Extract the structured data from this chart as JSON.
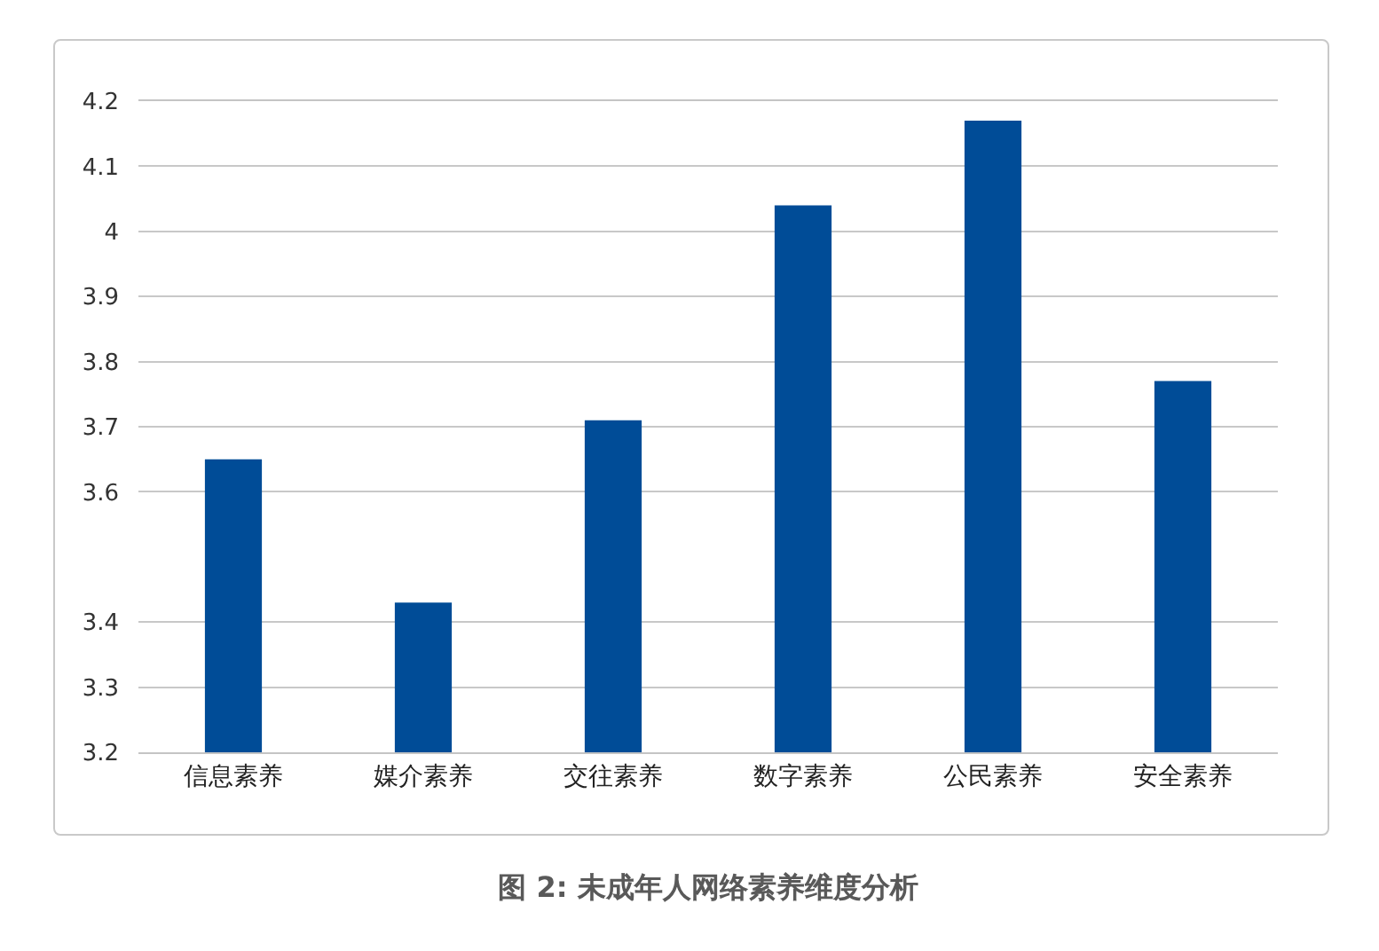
{
  "chart_data": {
    "type": "bar",
    "title": "图 2: 未成年人网络素养维度分析",
    "categories": [
      "信息素养",
      "媒介素养",
      "交往素养",
      "数字素养",
      "公民素养",
      "安全素养"
    ],
    "values": [
      3.65,
      3.43,
      3.71,
      4.04,
      4.17,
      3.77
    ],
    "color": "#004c97",
    "ylim": [
      3.2,
      4.2
    ],
    "yticks": [
      3.2,
      3.3,
      3.4,
      3.6,
      3.7,
      3.8,
      3.9,
      4,
      4.1,
      4.2
    ],
    "grid": "y"
  }
}
